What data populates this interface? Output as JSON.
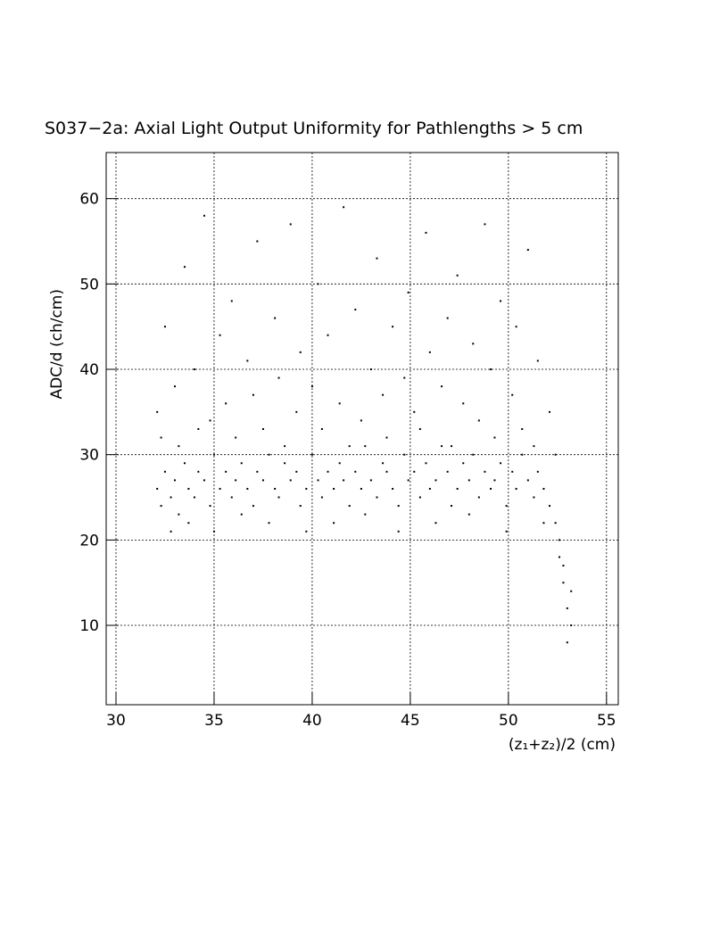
{
  "chart_data": {
    "type": "scatter",
    "title": "S037−2a: Axial Light Output Uniformity for Pathlengths > 5 cm",
    "x_label": "(z₁+z₂)/2 (cm)",
    "y_label": "ADC/d (ch/cm)",
    "xlim": [
      29.5,
      55.6
    ],
    "xticks": [
      30,
      35,
      40,
      45,
      50,
      55
    ],
    "ylim": [
      0.7,
      65.4
    ],
    "yticks": [
      10,
      20,
      30,
      40,
      50,
      60
    ],
    "grid": true,
    "color": "#000000",
    "x": [
      32.1,
      32.3,
      32.5,
      32.8,
      33.0,
      33.2,
      33.5,
      33.7,
      34.0,
      34.2,
      34.5,
      34.8,
      35.0,
      35.3,
      35.6,
      35.9,
      36.1,
      36.4,
      36.7,
      37.0,
      37.2,
      37.5,
      37.8,
      38.1,
      38.3,
      38.6,
      38.9,
      39.2,
      39.4,
      39.7,
      40.0,
      40.3,
      40.5,
      40.8,
      41.1,
      41.4,
      41.6,
      41.9,
      42.2,
      42.5,
      42.7,
      43.0,
      43.3,
      43.6,
      43.8,
      44.1,
      44.4,
      44.7,
      44.9,
      45.2,
      45.5,
      45.8,
      46.0,
      46.3,
      46.6,
      46.9,
      47.1,
      47.4,
      47.7,
      48.0,
      48.2,
      48.5,
      48.8,
      49.1,
      49.3,
      49.6,
      49.9,
      50.2,
      50.4,
      50.7,
      51.0,
      51.3,
      51.5,
      51.8,
      52.1,
      52.4,
      52.6,
      52.8,
      53.0,
      53.2,
      32.1,
      32.3,
      32.5,
      32.8,
      33.0,
      33.2,
      33.5,
      33.7,
      34.0,
      34.2,
      34.5,
      34.8,
      35.0,
      35.3,
      35.6,
      35.9,
      36.1,
      36.4,
      36.7,
      37.0,
      37.2,
      37.5,
      37.8,
      38.1,
      38.3,
      38.6,
      38.9,
      39.2,
      39.4,
      39.7,
      40.0,
      40.3,
      40.5,
      40.8,
      41.1,
      41.4,
      41.6,
      41.9,
      42.2,
      42.5,
      42.7,
      43.0,
      43.3,
      43.6,
      43.8,
      44.1,
      44.4,
      44.7,
      44.9,
      45.2,
      45.5,
      45.8,
      46.0,
      46.3,
      46.6,
      46.9,
      47.1,
      47.4,
      47.7,
      48.0,
      48.2,
      48.5,
      48.8,
      49.1,
      49.3,
      49.6,
      49.9,
      50.2,
      50.4,
      50.7,
      51.0,
      51.3,
      51.5,
      51.8,
      52.1,
      52.4,
      52.6,
      52.8,
      53.0,
      53.2
    ],
    "values": [
      26,
      24,
      28,
      25,
      27,
      23,
      29,
      26,
      25,
      28,
      27,
      24,
      30,
      26,
      28,
      25,
      27,
      29,
      26,
      24,
      28,
      27,
      30,
      26,
      25,
      29,
      27,
      28,
      24,
      26,
      30,
      27,
      25,
      28,
      26,
      29,
      27,
      24,
      28,
      26,
      31,
      27,
      25,
      29,
      28,
      26,
      24,
      30,
      27,
      28,
      25,
      29,
      26,
      27,
      31,
      28,
      24,
      26,
      29,
      27,
      30,
      25,
      28,
      26,
      27,
      29,
      24,
      28,
      26,
      30,
      27,
      25,
      28,
      26,
      24,
      22,
      18,
      15,
      12,
      10,
      35,
      32,
      45,
      21,
      38,
      31,
      52,
      22,
      40,
      33,
      58,
      34,
      21,
      44,
      36,
      48,
      32,
      23,
      41,
      37,
      55,
      33,
      22,
      46,
      39,
      31,
      57,
      35,
      42,
      21,
      38,
      50,
      33,
      44,
      22,
      36,
      59,
      31,
      47,
      34,
      23,
      40,
      53,
      37,
      32,
      45,
      21,
      39,
      49,
      35,
      33,
      56,
      42,
      22,
      38,
      46,
      31,
      51,
      36,
      23,
      43,
      34,
      57,
      40,
      32,
      48,
      21,
      37,
      45,
      33,
      54,
      31,
      41,
      22,
      35,
      30,
      20,
      17,
      8,
      14
    ]
  }
}
